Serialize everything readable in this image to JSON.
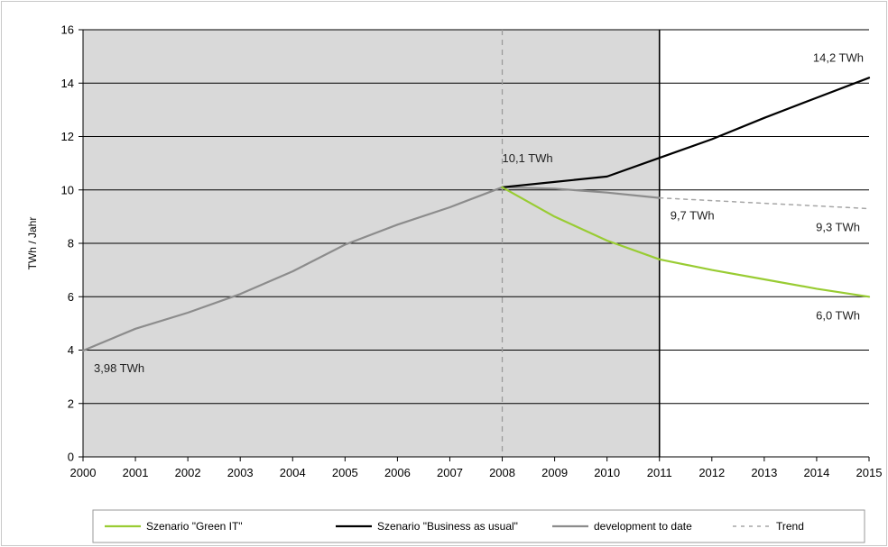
{
  "chart_data": {
    "type": "line",
    "title": "",
    "xlabel": "",
    "ylabel": "TWh / Jahr",
    "xlim": [
      2000,
      2015
    ],
    "ylim": [
      0,
      16
    ],
    "x_ticks": [
      "2000",
      "2001",
      "2002",
      "2003",
      "2004",
      "2005",
      "2006",
      "2007",
      "2008",
      "2009",
      "2010",
      "2011",
      "2012",
      "2013",
      "2014",
      "2015"
    ],
    "y_ticks": [
      "0",
      "2",
      "4",
      "6",
      "8",
      "10",
      "12",
      "14",
      "16"
    ],
    "grid": "horizontal",
    "shaded_region": {
      "x_from": 2000,
      "x_to": 2011,
      "color": "#d9d9d9"
    },
    "reference_lines": [
      {
        "x": 2008,
        "style": "dashed",
        "color": "#9a9a9a"
      },
      {
        "x": 2011,
        "style": "solid",
        "color": "#000000"
      }
    ],
    "legend_position": "bottom",
    "series": [
      {
        "name": "development to date",
        "color": "#8c8c8c",
        "style": "solid",
        "points": [
          [
            2000,
            3.98
          ],
          [
            2001,
            4.8
          ],
          [
            2002,
            5.4
          ],
          [
            2003,
            6.1
          ],
          [
            2004,
            6.95
          ],
          [
            2005,
            7.95
          ],
          [
            2006,
            8.7
          ],
          [
            2007,
            9.35
          ],
          [
            2008,
            10.1
          ],
          [
            2009,
            10.05
          ],
          [
            2010,
            9.9
          ],
          [
            2011,
            9.7
          ]
        ]
      },
      {
        "name": "Trend",
        "color": "#a6a6a6",
        "style": "dotted",
        "points": [
          [
            2011,
            9.7
          ],
          [
            2012,
            9.6
          ],
          [
            2013,
            9.5
          ],
          [
            2014,
            9.4
          ],
          [
            2015,
            9.3
          ]
        ]
      },
      {
        "name": "Szenario \"Business as usual\"",
        "color": "#000000",
        "style": "solid",
        "points": [
          [
            2008,
            10.1
          ],
          [
            2009,
            10.3
          ],
          [
            2010,
            10.5
          ],
          [
            2011,
            11.2
          ],
          [
            2012,
            11.9
          ],
          [
            2013,
            12.7
          ],
          [
            2014,
            13.45
          ],
          [
            2015,
            14.2
          ]
        ]
      },
      {
        "name": "Szenario \"Green IT\"",
        "color": "#99cc33",
        "style": "solid",
        "points": [
          [
            2008,
            10.1
          ],
          [
            2009,
            9.0
          ],
          [
            2010,
            8.1
          ],
          [
            2011,
            7.4
          ],
          [
            2012,
            7.0
          ],
          [
            2013,
            6.65
          ],
          [
            2014,
            6.3
          ],
          [
            2015,
            6.0
          ]
        ]
      }
    ],
    "annotations": [
      {
        "text": "3,98 TWh",
        "x": 2000,
        "y": 3.98,
        "anchor": "below-right"
      },
      {
        "text": "10,1 TWh",
        "x": 2008,
        "y": 10.1,
        "anchor": "above-right"
      },
      {
        "text": "14,2 TWh",
        "x": 2015,
        "y": 14.2,
        "anchor": "above-left"
      },
      {
        "text": "9,7 TWh",
        "x": 2011,
        "y": 9.7,
        "anchor": "below-right"
      },
      {
        "text": "9,3 TWh",
        "x": 2015,
        "y": 9.3,
        "anchor": "below-left"
      },
      {
        "text": "6,0 TWh",
        "x": 2015,
        "y": 6.0,
        "anchor": "below-left"
      }
    ],
    "legend": [
      {
        "label": "Szenario \"Green IT\"",
        "color": "#99cc33",
        "style": "solid"
      },
      {
        "label": "Szenario \"Business as usual\"",
        "color": "#000000",
        "style": "solid"
      },
      {
        "label": "development to date",
        "color": "#8c8c8c",
        "style": "solid"
      },
      {
        "label": "Trend",
        "color": "#a6a6a6",
        "style": "dotted"
      }
    ]
  }
}
